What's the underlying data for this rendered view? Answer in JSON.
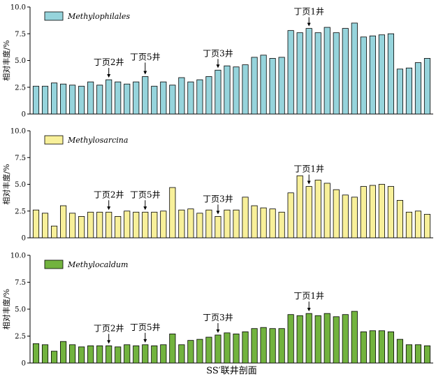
{
  "figure": {
    "xlabel": "SS′联井剖面",
    "ylabel": "相对丰度/%"
  },
  "chart_data": [
    {
      "type": "bar",
      "legend": "Methylophilales",
      "color": "#96d4dc",
      "ylim": [
        0,
        10
      ],
      "yticks": [
        "0",
        "2.5",
        "5.0",
        "7.5",
        "10.0"
      ],
      "values": [
        2.6,
        2.6,
        2.9,
        2.8,
        2.7,
        2.6,
        3.0,
        2.7,
        3.2,
        3.0,
        2.8,
        3.0,
        3.5,
        2.6,
        3.0,
        2.7,
        3.4,
        3.0,
        3.2,
        3.5,
        4.1,
        4.5,
        4.4,
        4.6,
        5.3,
        5.5,
        5.2,
        5.3,
        7.8,
        7.6,
        8.0,
        7.6,
        8.1,
        7.6,
        8.0,
        8.5,
        7.2,
        7.3,
        7.4,
        7.5,
        4.2,
        4.3,
        4.8,
        5.2
      ],
      "annotations": [
        {
          "label": "丁页2井",
          "index": 8
        },
        {
          "label": "丁页5井",
          "index": 12
        },
        {
          "label": "丁页3井",
          "index": 20
        },
        {
          "label": "丁页1井",
          "index": 30
        }
      ]
    },
    {
      "type": "bar",
      "legend": "Methylosarcina",
      "color": "#f8f09a",
      "ylim": [
        0,
        10
      ],
      "yticks": [
        "0",
        "2.5",
        "5.0",
        "7.5",
        "10.0"
      ],
      "values": [
        2.6,
        2.3,
        1.1,
        3.0,
        2.3,
        2.0,
        2.4,
        2.4,
        2.4,
        2.0,
        2.5,
        2.4,
        2.4,
        2.4,
        2.5,
        4.7,
        2.6,
        2.7,
        2.3,
        2.6,
        2.0,
        2.6,
        2.6,
        3.8,
        3.0,
        2.8,
        2.7,
        2.4,
        4.2,
        5.8,
        4.8,
        5.4,
        5.1,
        4.5,
        4.0,
        3.8,
        4.8,
        4.9,
        5.0,
        4.8,
        3.5,
        2.4,
        2.5,
        2.2
      ],
      "annotations": [
        {
          "label": "丁页2井",
          "index": 8
        },
        {
          "label": "丁页5井",
          "index": 12
        },
        {
          "label": "丁页3井",
          "index": 20
        },
        {
          "label": "丁页1井",
          "index": 30
        }
      ]
    },
    {
      "type": "bar",
      "legend": "Methylocaldum",
      "color": "#72b33e",
      "ylim": [
        0,
        10
      ],
      "yticks": [
        "0",
        "2.5",
        "5.0",
        "7.5",
        "10.0"
      ],
      "values": [
        1.8,
        1.7,
        1.1,
        2.0,
        1.7,
        1.5,
        1.6,
        1.6,
        1.6,
        1.5,
        1.7,
        1.6,
        1.7,
        1.6,
        1.7,
        2.7,
        1.7,
        2.1,
        2.2,
        2.4,
        2.6,
        2.8,
        2.7,
        2.9,
        3.2,
        3.3,
        3.2,
        3.2,
        4.5,
        4.4,
        4.6,
        4.4,
        4.6,
        4.3,
        4.5,
        4.8,
        2.9,
        3.0,
        3.0,
        2.9,
        2.2,
        1.7,
        1.7,
        1.6
      ],
      "annotations": [
        {
          "label": "丁页2井",
          "index": 8
        },
        {
          "label": "丁页5井",
          "index": 12
        },
        {
          "label": "丁页3井",
          "index": 20
        },
        {
          "label": "丁页1井",
          "index": 30
        }
      ]
    }
  ]
}
